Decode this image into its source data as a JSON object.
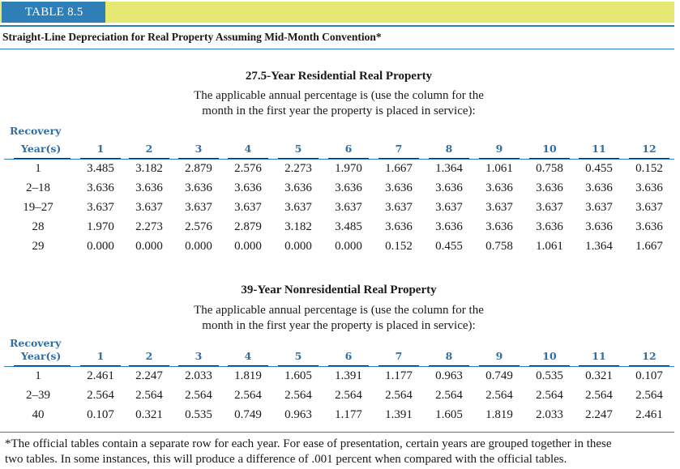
{
  "table_tag": "TABLE 8.5",
  "caption": "Straight-Line Depreciation for Real Property Assuming Mid-Month Convention*",
  "recovery_label_line1": "Recovery",
  "recovery_label_line2": "Year(s)",
  "columns": [
    "1",
    "2",
    "3",
    "4",
    "5",
    "6",
    "7",
    "8",
    "9",
    "10",
    "11",
    "12"
  ],
  "residential": {
    "title": "27.5-Year Residential Real Property",
    "instruction_line1": "The applicable annual percentage is (use the column for the",
    "instruction_line2": "month in the first year the property is placed in service):",
    "rows": [
      {
        "year": "1",
        "values": [
          "3.485",
          "3.182",
          "2.879",
          "2.576",
          "2.273",
          "1.970",
          "1.667",
          "1.364",
          "1.061",
          "0.758",
          "0.455",
          "0.152"
        ]
      },
      {
        "year": "2–18",
        "values": [
          "3.636",
          "3.636",
          "3.636",
          "3.636",
          "3.636",
          "3.636",
          "3.636",
          "3.636",
          "3.636",
          "3.636",
          "3.636",
          "3.636"
        ]
      },
      {
        "year": "19–27",
        "values": [
          "3.637",
          "3.637",
          "3.637",
          "3.637",
          "3.637",
          "3.637",
          "3.637",
          "3.637",
          "3.637",
          "3.637",
          "3.637",
          "3.637"
        ]
      },
      {
        "year": "28",
        "values": [
          "1.970",
          "2.273",
          "2.576",
          "2.879",
          "3.182",
          "3.485",
          "3.636",
          "3.636",
          "3.636",
          "3.636",
          "3.636",
          "3.636"
        ]
      },
      {
        "year": "29",
        "values": [
          "0.000",
          "0.000",
          "0.000",
          "0.000",
          "0.000",
          "0.000",
          "0.152",
          "0.455",
          "0.758",
          "1.061",
          "1.364",
          "1.667"
        ]
      }
    ]
  },
  "nonresidential": {
    "title": "39-Year Nonresidential Real Property",
    "instruction_line1": "The applicable annual percentage is (use the column for the",
    "instruction_line2": "month in the first year the property is placed in service):",
    "rows": [
      {
        "year": "1",
        "values": [
          "2.461",
          "2.247",
          "2.033",
          "1.819",
          "1.605",
          "1.391",
          "1.177",
          "0.963",
          "0.749",
          "0.535",
          "0.321",
          "0.107"
        ]
      },
      {
        "year": "2–39",
        "values": [
          "2.564",
          "2.564",
          "2.564",
          "2.564",
          "2.564",
          "2.564",
          "2.564",
          "2.564",
          "2.564",
          "2.564",
          "2.564",
          "2.564"
        ]
      },
      {
        "year": "40",
        "values": [
          "0.107",
          "0.321",
          "0.535",
          "0.749",
          "0.963",
          "1.177",
          "1.391",
          "1.605",
          "1.819",
          "2.033",
          "2.247",
          "2.461"
        ]
      }
    ]
  },
  "footnote_line1": "*The official tables contain a separate row for each year. For ease of presentation, certain years are grouped together in these",
  "footnote_line2": "two tables. In some instances, this will produce a difference of .001 percent when compared with the official tables.",
  "colors": {
    "accent_blue": "#2e7fb8",
    "header_yellow": "#e6e874",
    "label_blue": "#2e6fa6"
  }
}
